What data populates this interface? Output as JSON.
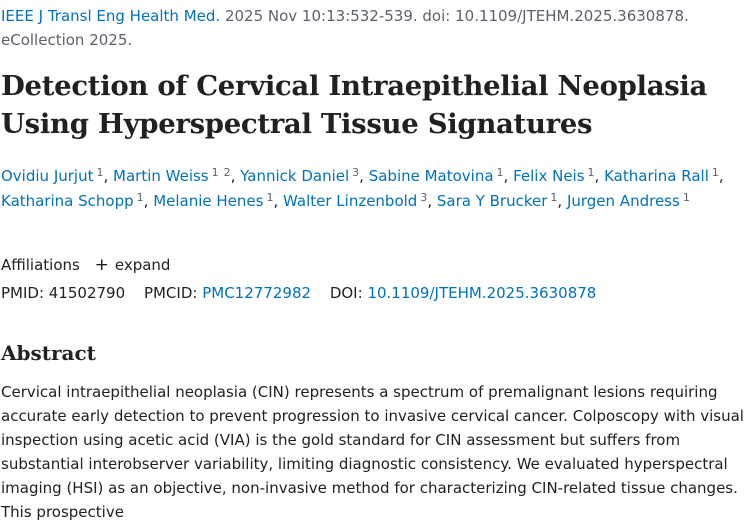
{
  "citation": {
    "journal": "IEEE J Transl Eng Health Med.",
    "line1_rest": "2025 Nov 10:13:532-539. doi: 10.1109/JTEHM.2025.3630878.",
    "line2": "eCollection 2025."
  },
  "title": "Detection of Cervical Intraepithelial Neoplasia Using Hyperspectral Tissue Signatures",
  "authors": [
    {
      "name": "Ovidiu Jurjut",
      "affs": [
        "1"
      ]
    },
    {
      "name": "Martin Weiss",
      "affs": [
        "1",
        "2"
      ]
    },
    {
      "name": "Yannick Daniel",
      "affs": [
        "3"
      ]
    },
    {
      "name": "Sabine Matovina",
      "affs": [
        "1"
      ]
    },
    {
      "name": "Felix Neis",
      "affs": [
        "1"
      ]
    },
    {
      "name": "Katharina Rall",
      "affs": [
        "1"
      ]
    },
    {
      "name": "Katharina Schopp",
      "affs": [
        "1"
      ]
    },
    {
      "name": "Melanie Henes",
      "affs": [
        "1"
      ]
    },
    {
      "name": "Walter Linzenbold",
      "affs": [
        "3"
      ]
    },
    {
      "name": "Sara Y Brucker",
      "affs": [
        "1"
      ]
    },
    {
      "name": "Jurgen Andress",
      "affs": [
        "1"
      ]
    }
  ],
  "affiliations": {
    "label": "Affiliations",
    "expand_label": "expand",
    "expand_icon": "plus-icon"
  },
  "identifiers": {
    "pmid_label": "PMID:",
    "pmid": "41502790",
    "pmcid_label": "PMCID:",
    "pmcid": "PMC12772982",
    "doi_label": "DOI:",
    "doi": "10.1109/JTEHM.2025.3630878"
  },
  "abstract": {
    "heading": "Abstract",
    "text": "Cervical intraepithelial neoplasia (CIN) represents a spectrum of premalignant lesions requiring accurate early detection to prevent progression to invasive cervical cancer. Colposcopy with visual inspection using acetic acid (VIA) is the gold standard for CIN assessment but suffers from substantial interobserver variability, limiting diagnostic consistency. We evaluated hyperspectral imaging (HSI) as an objective, non-invasive method for characterizing CIN-related tissue changes. This prospective"
  },
  "colors": {
    "link": "#0071bc",
    "text": "#212121",
    "muted": "#5b616b"
  }
}
